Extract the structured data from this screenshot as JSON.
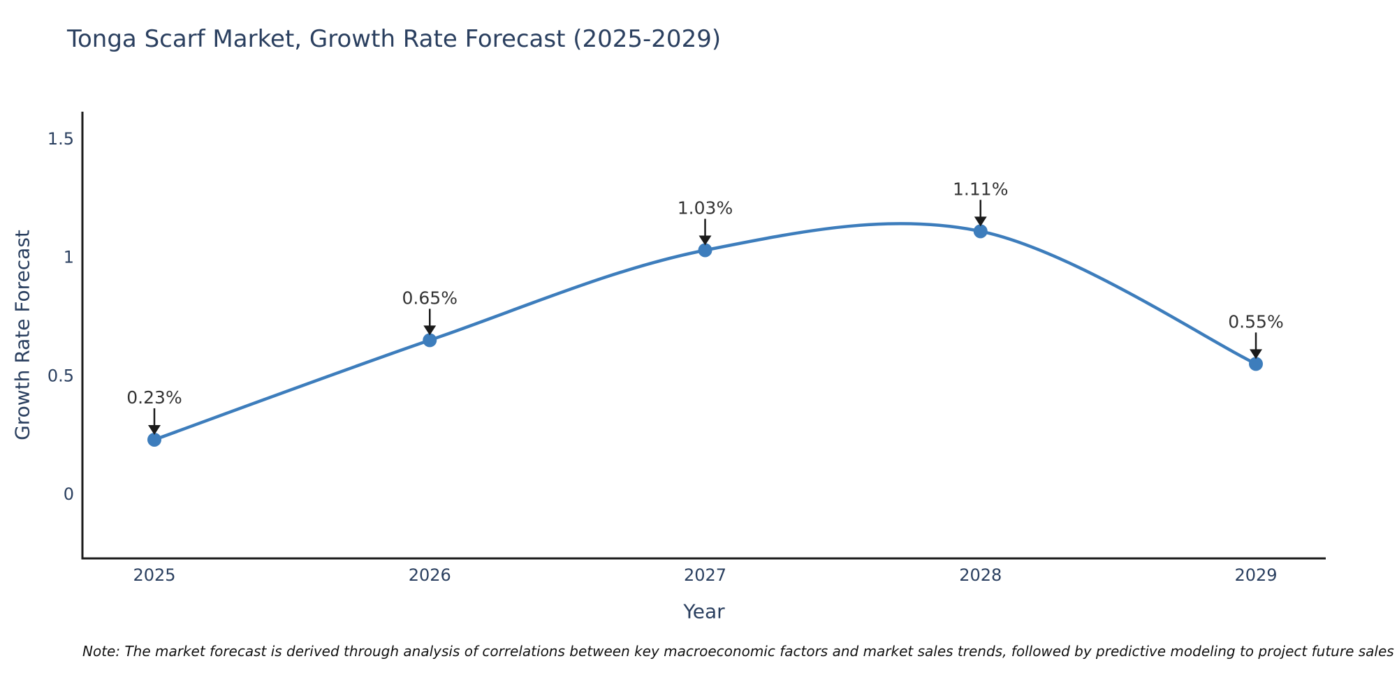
{
  "title": "Tonga Scarf Market, Growth Rate Forecast (2025-2029)",
  "note": "Note: The market forecast is derived through analysis of correlations between key macroeconomic factors and market sales trends, followed by predictive modeling to project future sales",
  "chart_data": {
    "type": "line",
    "line_shape": "spline",
    "title": "Tonga Scarf Market, Growth Rate Forecast (2025-2029)",
    "xlabel": "Year",
    "ylabel": "Growth Rate Forecast",
    "categories": [
      "2025",
      "2026",
      "2027",
      "2028",
      "2029"
    ],
    "values": [
      0.23,
      0.65,
      1.03,
      1.11,
      0.55
    ],
    "point_labels": [
      "0.23%",
      "0.65%",
      "1.03%",
      "1.11%",
      "0.55%"
    ],
    "y_ticks": [
      0,
      0.5,
      1,
      1.5
    ],
    "y_tick_labels": [
      "0",
      "0.5",
      "1",
      "1.5"
    ],
    "ylim": [
      -0.27,
      1.62
    ],
    "grid": false,
    "legend_position": "none",
    "annotation_style": "value labels with downward arrows above each point",
    "colors": {
      "line": "#3d7dbc",
      "marker": "#3d7dbc",
      "axis": "#1a1a1a",
      "tick_text": "#2a3f5f",
      "title_text": "#2a3f5f",
      "annotation_text": "#333333",
      "arrow": "#1a1a1a",
      "background": "#ffffff"
    }
  }
}
